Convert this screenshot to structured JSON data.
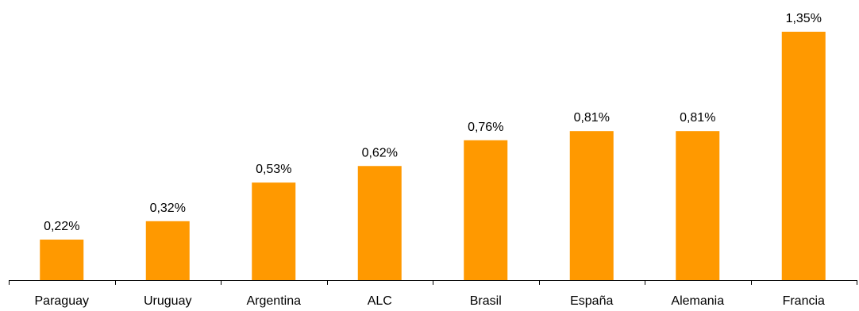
{
  "chart_data": {
    "type": "bar",
    "title": "",
    "xlabel": "",
    "ylabel": "",
    "categories": [
      "Paraguay",
      "Uruguay",
      "Argentina",
      "ALC",
      "Brasil",
      "España",
      "Alemania",
      "Francia"
    ],
    "values": [
      0.22,
      0.32,
      0.53,
      0.62,
      0.76,
      0.81,
      0.81,
      1.35
    ],
    "data_labels": [
      "0,22%",
      "0,32%",
      "0,53%",
      "0,62%",
      "0,76%",
      "0,81%",
      "0,81%",
      "1,35%"
    ],
    "unit": "%",
    "ylim": [
      0,
      1.35
    ],
    "grid": false,
    "legend": "none",
    "bar_color": "#FF9900"
  }
}
